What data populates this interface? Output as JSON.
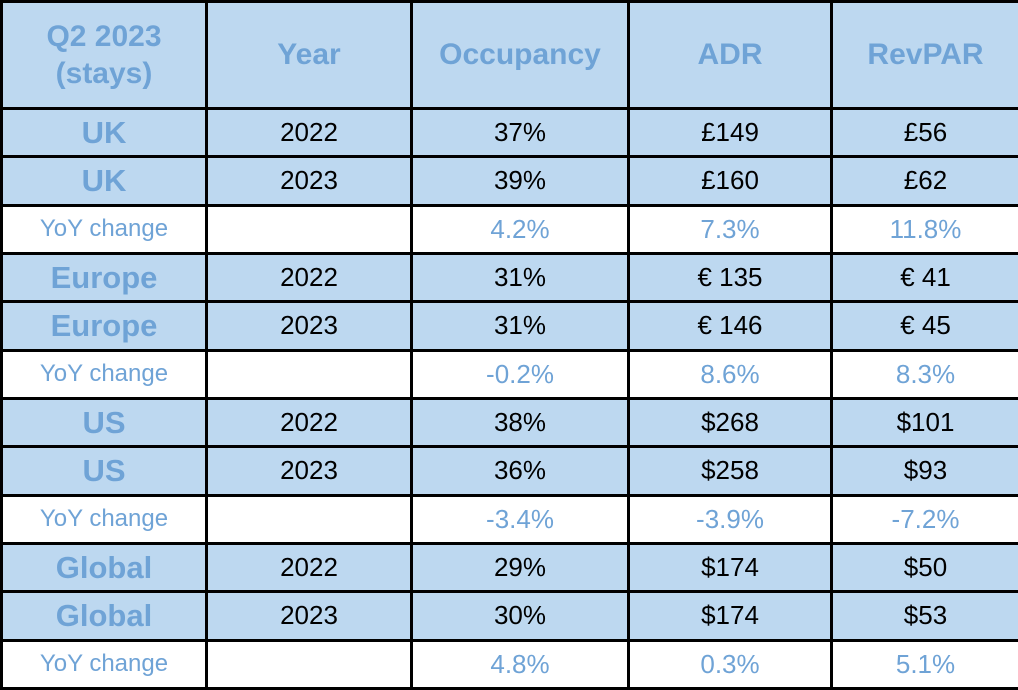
{
  "colors": {
    "cell_bg": "#bdd8f0",
    "yoy_row_bg": "#ffffff",
    "blue_text": "#6fa3d6",
    "value_text": "#000000",
    "grid_border": "#000000"
  },
  "chart_data": {
    "type": "table",
    "title": "Q2 2023 (stays)",
    "corner_label": {
      "line1": "Q2 2023",
      "line2": "(stays)"
    },
    "columns": [
      "Year",
      "Occupancy",
      "ADR",
      "RevPAR"
    ],
    "rows": [
      {
        "type": "data",
        "region": "UK",
        "year": "2022",
        "occupancy": "37%",
        "adr": "£149",
        "revpar": "£56"
      },
      {
        "type": "data",
        "region": "UK",
        "year": "2023",
        "occupancy": "39%",
        "adr": "£160",
        "revpar": "£62"
      },
      {
        "type": "yoy",
        "region": "YoY change",
        "year": "",
        "occupancy": "4.2%",
        "adr": "7.3%",
        "revpar": "11.8%"
      },
      {
        "type": "data",
        "region": "Europe",
        "year": "2022",
        "occupancy": "31%",
        "adr": "€ 135",
        "revpar": "€ 41"
      },
      {
        "type": "data",
        "region": "Europe",
        "year": "2023",
        "occupancy": "31%",
        "adr": "€ 146",
        "revpar": "€ 45"
      },
      {
        "type": "yoy",
        "region": "YoY change",
        "year": "",
        "occupancy": "-0.2%",
        "adr": "8.6%",
        "revpar": "8.3%"
      },
      {
        "type": "data",
        "region": "US",
        "year": "2022",
        "occupancy": "38%",
        "adr": "$268",
        "revpar": "$101"
      },
      {
        "type": "data",
        "region": "US",
        "year": "2023",
        "occupancy": "36%",
        "adr": "$258",
        "revpar": "$93"
      },
      {
        "type": "yoy",
        "region": "YoY change",
        "year": "",
        "occupancy": "-3.4%",
        "adr": "-3.9%",
        "revpar": "-7.2%"
      },
      {
        "type": "data",
        "region": "Global",
        "year": "2022",
        "occupancy": "29%",
        "adr": "$174",
        "revpar": "$50"
      },
      {
        "type": "data",
        "region": "Global",
        "year": "2023",
        "occupancy": "30%",
        "adr": "$174",
        "revpar": "$53"
      },
      {
        "type": "yoy",
        "region": "YoY change",
        "year": "",
        "occupancy": "4.8%",
        "adr": "0.3%",
        "revpar": "5.1%"
      }
    ]
  }
}
